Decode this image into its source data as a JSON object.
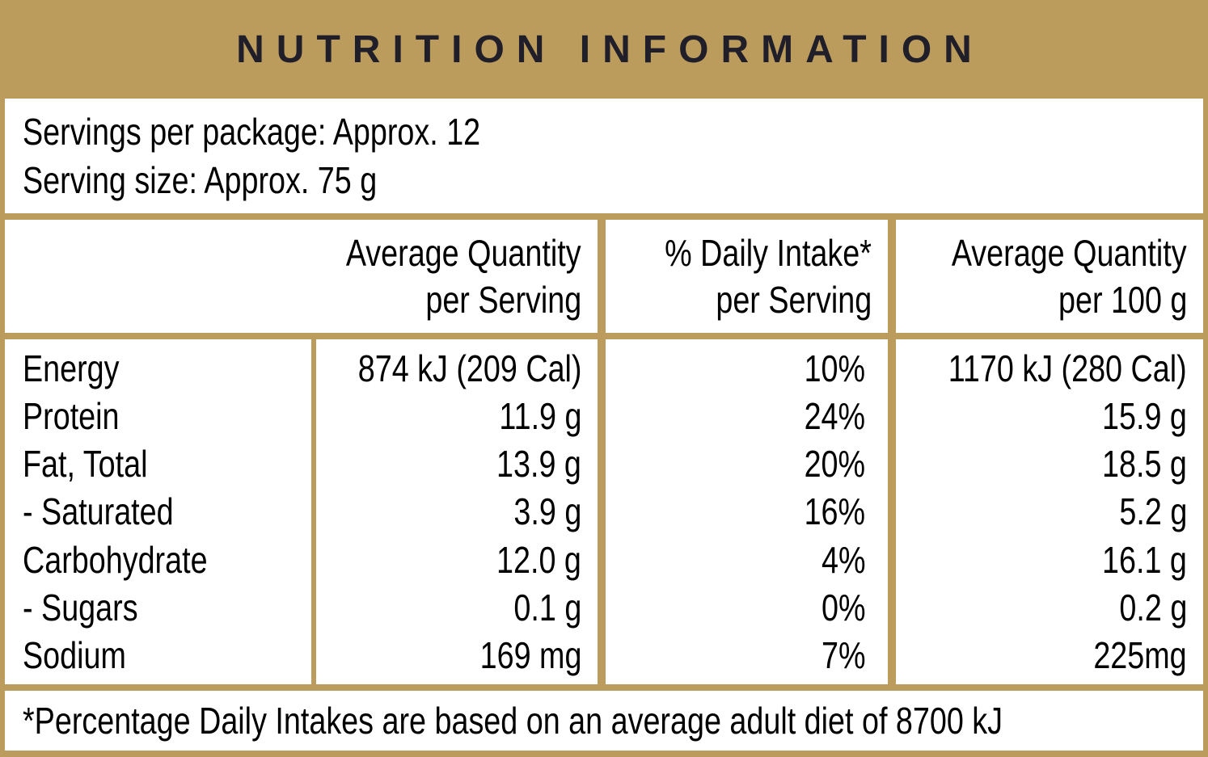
{
  "colors": {
    "gold": "#BB9C5C",
    "title_text": "#201F29",
    "body_text": "#000000",
    "panel_bg": "#FFFFFF"
  },
  "title": "NUTRITION INFORMATION",
  "serving_info": {
    "servings_per_package": "Servings per package: Approx. 12",
    "serving_size": "Serving size: Approx. 75 g"
  },
  "table": {
    "headers": {
      "per_serving": {
        "line1": "Average Quantity",
        "line2": "per Serving"
      },
      "daily_intake": {
        "line1": "% Daily Intake*",
        "line2": "per Serving"
      },
      "per_100g": {
        "line1": "Average Quantity",
        "line2": "per 100 g"
      }
    },
    "rows": [
      {
        "nutrient": "Energy",
        "per_serving": "874 kJ (209 Cal)",
        "daily_intake": "10%",
        "per_100g": "1170 kJ (280 Cal)"
      },
      {
        "nutrient": "Protein",
        "per_serving": "11.9 g",
        "daily_intake": "24%",
        "per_100g": "15.9 g"
      },
      {
        "nutrient": "Fat, Total",
        "per_serving": "13.9 g",
        "daily_intake": "20%",
        "per_100g": "18.5 g"
      },
      {
        "nutrient": "- Saturated",
        "per_serving": "3.9 g",
        "daily_intake": "16%",
        "per_100g": "5.2 g"
      },
      {
        "nutrient": "Carbohydrate",
        "per_serving": "12.0 g",
        "daily_intake": "4%",
        "per_100g": "16.1 g"
      },
      {
        "nutrient": "- Sugars",
        "per_serving": "0.1 g",
        "daily_intake": "0%",
        "per_100g": "0.2 g"
      },
      {
        "nutrient": "Sodium",
        "per_serving": "169 mg",
        "daily_intake": "7%",
        "per_100g": "225mg"
      }
    ]
  },
  "footnote": "*Percentage Daily Intakes are based on an average adult diet of 8700 kJ"
}
